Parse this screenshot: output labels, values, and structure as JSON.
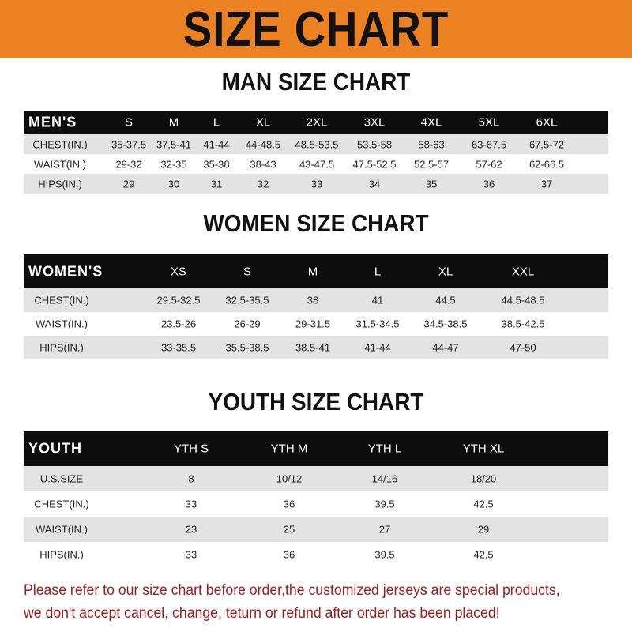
{
  "banner": {
    "title": "SIZE CHART",
    "color": "#ec8121"
  },
  "men": {
    "title": "MAN SIZE CHART",
    "header": [
      "MEN'S",
      "S",
      "M",
      "L",
      "XL",
      "2XL",
      "3XL",
      "4XL",
      "5XL",
      "6XL"
    ],
    "rows": [
      [
        "CHEST(IN.)",
        "35-37.5",
        "37.5-41",
        "41-44",
        "44-48.5",
        "48.5-53.5",
        "53.5-58",
        "58-63",
        "63-67.5",
        "67.5-72"
      ],
      [
        "WAIST(IN.)",
        "29-32",
        "32-35",
        "35-38",
        "38-43",
        "43-47.5",
        "47.5-52.5",
        "52.5-57",
        "57-62",
        "62-66.5"
      ],
      [
        "HIPS(IN.)",
        "29",
        "30",
        "31",
        "32",
        "33",
        "34",
        "35",
        "36",
        "37"
      ]
    ]
  },
  "women": {
    "title": "WOMEN SIZE CHART",
    "header": [
      "WOMEN'S",
      "XS",
      "S",
      "M",
      "L",
      "XL",
      "XXL"
    ],
    "rows": [
      [
        "CHEST(IN.)",
        "29.5-32.5",
        "32.5-35.5",
        "38",
        "41",
        "44.5",
        "44.5-48.5"
      ],
      [
        "WAIST(IN.)",
        "23.5-26",
        "26-29",
        "29-31.5",
        "31.5-34.5",
        "34.5-38.5",
        "38.5-42.5"
      ],
      [
        "HIPS(IN.)",
        "33-35.5",
        "35.5-38.5",
        "38.5-41",
        "41-44",
        "44-47",
        "47-50"
      ]
    ]
  },
  "youth": {
    "title": "YOUTH SIZE CHART",
    "header": [
      "YOUTH",
      "YTH S",
      "YTH M",
      "YTH L",
      "YTH XL"
    ],
    "rows": [
      [
        "U.S.SIZE",
        "8",
        "10/12",
        "14/16",
        "18/20"
      ],
      [
        "CHEST(IN.)",
        "33",
        "36",
        "39.5",
        "42.5"
      ],
      [
        "WAIST(IN.)",
        "23",
        "25",
        "27",
        "29"
      ],
      [
        "HIPS(IN.)",
        "33",
        "36",
        "39.5",
        "42.5"
      ]
    ]
  },
  "note": {
    "line1": "Please refer to our size chart before order,the customized jerseys are special products,",
    "line2": "we don't accept cancel, change, teturn or refund after order has been placed!",
    "color": "#9e1b1b"
  }
}
